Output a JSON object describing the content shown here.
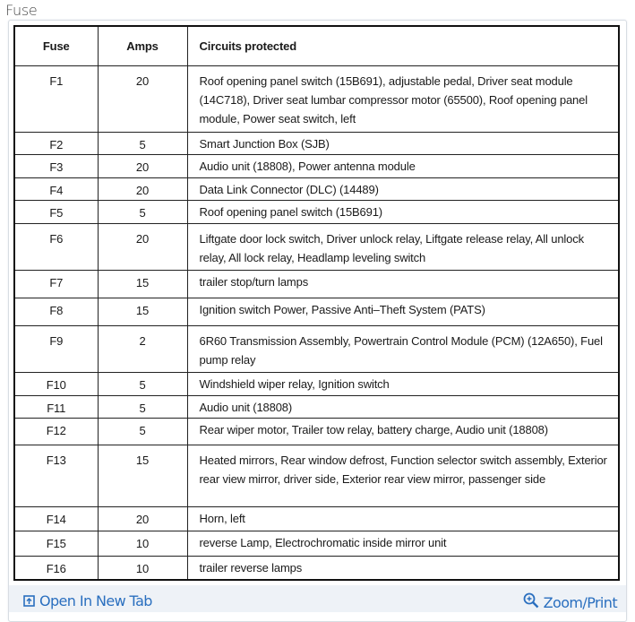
{
  "title": "Fuse",
  "table": {
    "headers": [
      "Fuse",
      "Amps",
      "Circuits protected"
    ],
    "rows": [
      {
        "fuse": "F1",
        "amps": "20",
        "circuits": "Roof opening panel switch (15B691), adjustable pedal, Driver seat module (14C718), Driver seat lumbar compressor motor (65500), Roof opening panel module, Power seat switch, left"
      },
      {
        "fuse": "F2",
        "amps": "5",
        "circuits": "Smart Junction Box (SJB)"
      },
      {
        "fuse": "F3",
        "amps": "20",
        "circuits": "Audio unit (18808), Power antenna module"
      },
      {
        "fuse": "F4",
        "amps": "20",
        "circuits": "Data Link Connector (DLC) (14489)"
      },
      {
        "fuse": "F5",
        "amps": "5",
        "circuits": "Roof opening panel switch (15B691)"
      },
      {
        "fuse": "F6",
        "amps": "20",
        "circuits": "Liftgate door lock switch, Driver unlock relay, Liftgate release relay, All unlock relay, All lock relay, Headlamp leveling switch"
      },
      {
        "fuse": "F7",
        "amps": "15",
        "circuits": "trailer stop/turn lamps"
      },
      {
        "fuse": "F8",
        "amps": "15",
        "circuits": "Ignition switch Power, Passive Anti–Theft System (PATS)"
      },
      {
        "fuse": "F9",
        "amps": "2",
        "circuits": "6R60 Transmission Assembly, Powertrain Control Module (PCM) (12A650), Fuel pump relay"
      },
      {
        "fuse": "F10",
        "amps": "5",
        "circuits": "Windshield wiper relay, Ignition switch"
      },
      {
        "fuse": "F11",
        "amps": "5",
        "circuits": "Audio unit (18808)"
      },
      {
        "fuse": "F12",
        "amps": "5",
        "circuits": "Rear wiper motor, Trailer tow relay, battery charge, Audio unit (18808)"
      },
      {
        "fuse": "F13",
        "amps": "15",
        "circuits": "Heated mirrors, Rear window defrost, Function selector switch assembly, Exterior rear view mirror, driver side, Exterior rear view mirror, passenger side"
      },
      {
        "fuse": "F14",
        "amps": "20",
        "circuits": "Horn, left"
      },
      {
        "fuse": "F15",
        "amps": "10",
        "circuits": "reverse Lamp, Electrochromatic inside mirror unit"
      },
      {
        "fuse": "F16",
        "amps": "10",
        "circuits": "trailer reverse lamps"
      }
    ]
  },
  "footer": {
    "open_label": "Open In New Tab",
    "open_icon": "open-new-tab-icon",
    "zoom_label": "Zoom/Print",
    "zoom_icon": "zoom-in-icon",
    "link_color": "#2a6fbf"
  }
}
